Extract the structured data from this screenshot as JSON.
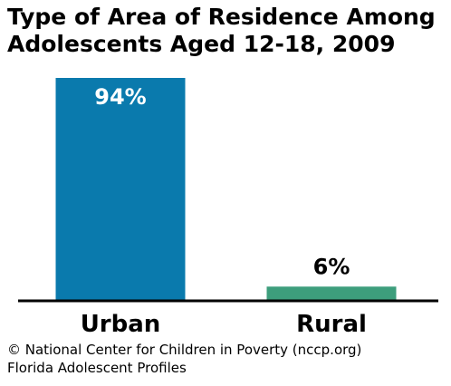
{
  "chart_data": {
    "type": "bar",
    "title_lines": [
      "Type of Area of Residence Among",
      "Adolescents Aged 12-18, 2009"
    ],
    "categories": [
      "Urban",
      "Rural"
    ],
    "values": [
      94,
      6
    ],
    "value_labels": [
      "94%",
      "6%"
    ],
    "colors": [
      "#0a7aad",
      "#3d9e7c"
    ],
    "ylim": [
      0,
      100
    ],
    "grid": false,
    "legend": "none"
  },
  "footer": {
    "line1": "© National Center for Children in Poverty (nccp.org)",
    "line2": "Florida Adolescent Profiles"
  }
}
